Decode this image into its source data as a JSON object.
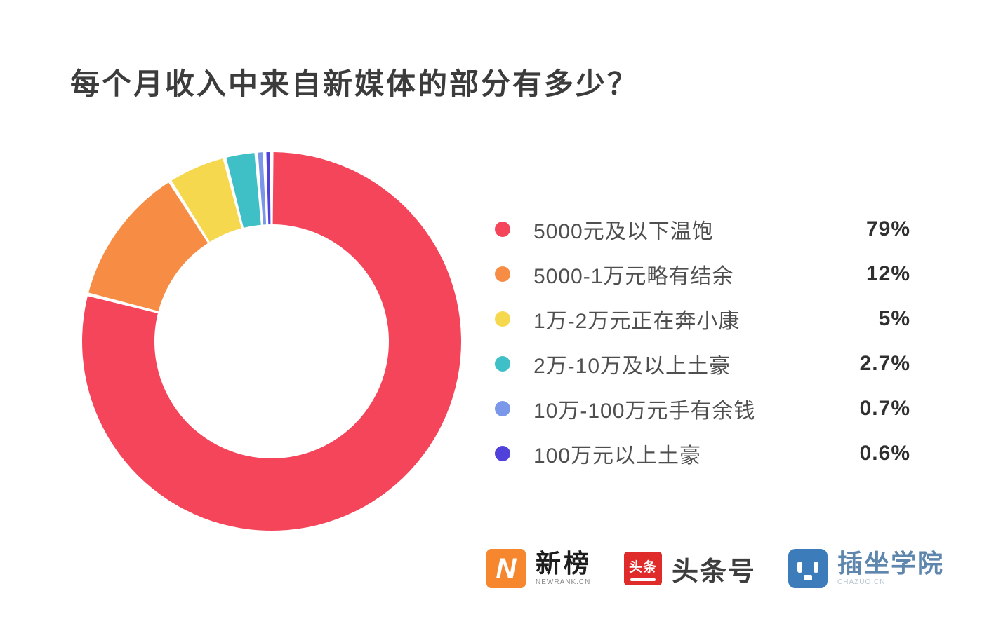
{
  "title": "每个月收入中来自新媒体的部分有多少？",
  "chart_data": {
    "type": "pie",
    "subtype": "donut",
    "title": "每个月收入中来自新媒体的部分有多少？",
    "legend_position": "right",
    "start_angle_deg": 0,
    "direction": "clockwise",
    "inner_radius_ratio": 0.62,
    "categories": [
      "5000元及以下温饱",
      "5000-1万元略有结余",
      "1万-2万元正在奔小康",
      "2万-10万及以上土豪",
      "10万-100万元手有余钱",
      "100万元以上土豪"
    ],
    "values": [
      79,
      12,
      5,
      2.7,
      0.7,
      0.6
    ],
    "series": [
      {
        "label": "5000元及以下温饱",
        "value": 79,
        "display": "79%",
        "color": "#F4455A"
      },
      {
        "label": "5000-1万元略有结余",
        "value": 12,
        "display": "12%",
        "color": "#F78C44"
      },
      {
        "label": "1万-2万元正在奔小康",
        "value": 5,
        "display": "5%",
        "color": "#F5D84E"
      },
      {
        "label": "2万-10万及以上土豪",
        "value": 2.7,
        "display": "2.7%",
        "color": "#3FC0C6"
      },
      {
        "label": "10万-100万元手有余钱",
        "value": 0.7,
        "display": "0.7%",
        "color": "#7A97E9"
      },
      {
        "label": "100万元以上土豪",
        "value": 0.6,
        "display": "0.6%",
        "color": "#4F41D9"
      }
    ]
  },
  "footer": {
    "newrank": {
      "badge": "N",
      "name": "新榜",
      "sub": "NEWRANK.CN",
      "color": "#F6872F"
    },
    "toutiao": {
      "badge": "头条",
      "name": "头条号",
      "color": "#DF2C2B"
    },
    "chazuo": {
      "name": "插坐学院",
      "sub": "CHAZUO.CN",
      "color": "#3D7CBA"
    }
  }
}
